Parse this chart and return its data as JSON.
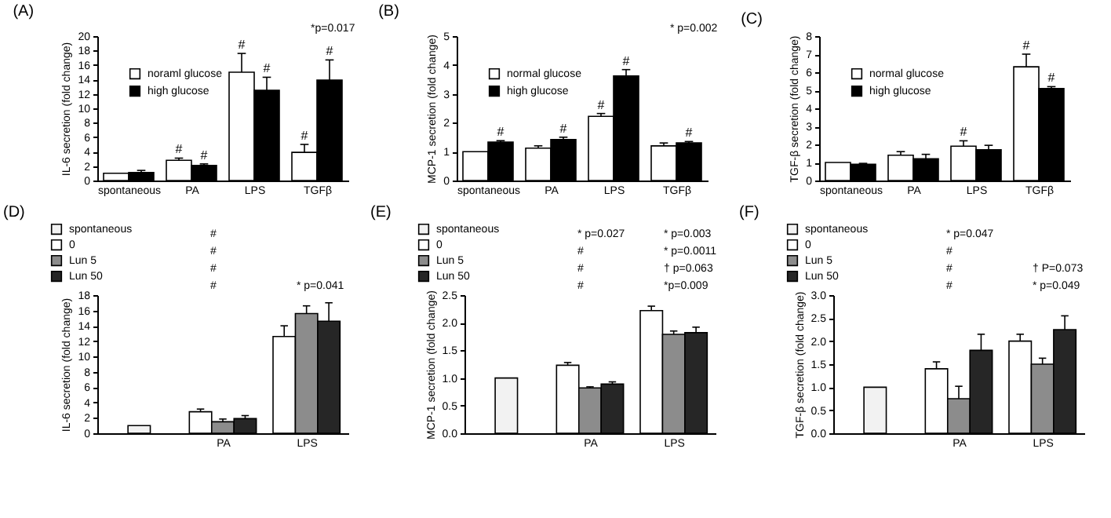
{
  "chart_data": [
    {
      "type": "bar",
      "title": "(A)",
      "ylabel": "IL-6 secretion (fold change)",
      "categories": [
        "spontaneous",
        "PA",
        "LPS",
        "TGFβ"
      ],
      "legend": "top left",
      "grid": false,
      "series": [
        {
          "name": "noraml glucose",
          "color": "#ffffff",
          "values": [
            1.0,
            2.8,
            15.0,
            3.9
          ],
          "errors": [
            null,
            0.3,
            2.6,
            1.1
          ],
          "value_labels": [
            null,
            "#",
            "#",
            "#"
          ]
        },
        {
          "name": "high glucose",
          "color": "#000000",
          "values": [
            1.1,
            2.1,
            12.5,
            13.9
          ],
          "errors": [
            0.3,
            0.2,
            1.8,
            2.8
          ],
          "value_labels": [
            null,
            "#",
            "#",
            "#"
          ]
        }
      ],
      "ylim": [
        0,
        20
      ],
      "yticks": [
        0,
        2,
        4,
        6,
        8,
        10,
        12,
        14,
        16,
        18,
        20
      ],
      "annotations": [
        "*p=0.017"
      ]
    },
    {
      "type": "bar",
      "title": "(B)",
      "ylabel": "MCP-1 secretion (fold change)",
      "categories": [
        "spontaneous",
        "PA",
        "LPS",
        "TGFβ"
      ],
      "legend": "top left",
      "grid": false,
      "series": [
        {
          "name": "normal glucose",
          "color": "#ffffff",
          "values": [
            1.0,
            1.12,
            2.22,
            1.2
          ],
          "errors": [
            null,
            0.08,
            0.1,
            0.1
          ],
          "value_labels": [
            null,
            null,
            "#",
            null
          ]
        },
        {
          "name": "high glucose",
          "color": "#000000",
          "values": [
            1.33,
            1.42,
            3.62,
            1.3
          ],
          "errors": [
            0.05,
            0.08,
            0.22,
            0.05
          ],
          "value_labels": [
            "#",
            "#",
            "#",
            "#"
          ]
        }
      ],
      "ylim": [
        0,
        5
      ],
      "yticks": [
        0,
        1,
        2,
        3,
        4,
        5
      ],
      "annotations": [
        "* p=0.002"
      ]
    },
    {
      "type": "bar",
      "title": "(C)",
      "ylabel": "TGF-β secretion (fold change)",
      "categories": [
        "spontaneous",
        "PA",
        "LPS",
        "TGFβ"
      ],
      "legend": "top left",
      "grid": false,
      "series": [
        {
          "name": "normal glucose",
          "color": "#ffffff",
          "values": [
            1.0,
            1.4,
            1.9,
            6.3
          ],
          "errors": [
            null,
            0.2,
            0.3,
            0.7
          ],
          "value_labels": [
            null,
            null,
            "#",
            "#"
          ]
        },
        {
          "name": "high glucose",
          "color": "#000000",
          "values": [
            0.9,
            1.2,
            1.7,
            5.1
          ],
          "errors": [
            0.05,
            0.25,
            0.25,
            0.1
          ],
          "value_labels": [
            null,
            null,
            null,
            "#"
          ]
        }
      ],
      "ylim": [
        0,
        8
      ],
      "yticks": [
        0,
        1,
        2,
        3,
        4,
        5,
        6,
        7,
        8
      ]
    },
    {
      "type": "bar",
      "title": "(D)",
      "ylabel": "IL-6 secretion (fold change)",
      "categories": [
        null,
        "PA",
        "LPS"
      ],
      "legend": "top",
      "grid": false,
      "series": [
        {
          "name": "spontaneous",
          "color": "#f2f2f2",
          "values": [
            1.0,
            null,
            null
          ]
        },
        {
          "name": "0",
          "color": "#ffffff",
          "values": [
            null,
            2.8,
            12.6
          ],
          "errors": [
            null,
            0.35,
            1.4
          ]
        },
        {
          "name": "Lun 5",
          "color": "#8c8c8c",
          "values": [
            null,
            1.5,
            15.6
          ],
          "errors": [
            null,
            0.35,
            1.0
          ]
        },
        {
          "name": "Lun 50",
          "color": "#262626",
          "values": [
            null,
            1.9,
            14.6
          ],
          "errors": [
            null,
            0.4,
            2.4
          ]
        }
      ],
      "ylim": [
        0,
        18
      ],
      "yticks": [
        0,
        2,
        4,
        6,
        8,
        10,
        12,
        14,
        16,
        18
      ],
      "annotations": [
        "#",
        "#",
        "#",
        "#",
        "* p=0.041"
      ]
    },
    {
      "type": "bar",
      "title": "(E)",
      "ylabel": "MCP-1 secretion (fold change)",
      "categories": [
        null,
        "PA",
        "LPS"
      ],
      "legend": "top",
      "grid": false,
      "series": [
        {
          "name": "spontaneous",
          "color": "#f2f2f2",
          "values": [
            1.0,
            null,
            null
          ]
        },
        {
          "name": "0",
          "color": "#ffffff",
          "values": [
            null,
            1.23,
            2.22
          ],
          "errors": [
            null,
            0.05,
            0.08
          ]
        },
        {
          "name": "Lun 5",
          "color": "#8c8c8c",
          "values": [
            null,
            0.82,
            1.79
          ],
          "errors": [
            null,
            0.02,
            0.06
          ]
        },
        {
          "name": "Lun 50",
          "color": "#262626",
          "values": [
            null,
            0.89,
            1.82
          ],
          "errors": [
            null,
            0.04,
            0.1
          ]
        }
      ],
      "ylim": [
        0,
        2.5
      ],
      "yticks": [
        {
          "value": 0,
          "label": "0.0"
        },
        {
          "value": 0.5,
          "label": "0.5"
        },
        {
          "value": 1,
          "label": "1.0"
        },
        {
          "value": 1.5,
          "label": "1.5"
        },
        {
          "value": 2,
          "label": "2.0"
        },
        {
          "value": 2.5,
          "label": "2.5"
        }
      ],
      "annotations": [
        "#",
        "#",
        "#",
        "* p=0.027",
        "*p=0.009",
        "† p=0.063",
        "* p=0.0011",
        "* p=0.003"
      ]
    },
    {
      "type": "bar",
      "title": "(F)",
      "ylabel": "TGF-β secretion (fold change)",
      "categories": [
        null,
        "PA",
        "LPS"
      ],
      "legend": "top",
      "grid": false,
      "series": [
        {
          "name": "spontaneous",
          "color": "#f2f2f2",
          "values": [
            1.0,
            null,
            null
          ]
        },
        {
          "name": "0",
          "color": "#ffffff",
          "values": [
            null,
            1.4,
            2.0
          ],
          "errors": [
            null,
            0.15,
            0.15
          ]
        },
        {
          "name": "Lun 5",
          "color": "#8c8c8c",
          "values": [
            null,
            0.75,
            1.5
          ],
          "errors": [
            null,
            0.27,
            0.13
          ]
        },
        {
          "name": "Lun 50",
          "color": "#262626",
          "values": [
            null,
            1.8,
            2.25
          ],
          "errors": [
            null,
            0.35,
            0.3
          ]
        }
      ],
      "ylim": [
        0,
        3
      ],
      "yticks": [
        {
          "value": 0,
          "label": "0.0"
        },
        {
          "value": 0.5,
          "label": "0.5"
        },
        {
          "value": 1,
          "label": "1.0"
        },
        {
          "value": 1.5,
          "label": "1.5"
        },
        {
          "value": 2,
          "label": "2.0"
        },
        {
          "value": 2.5,
          "label": "2.5"
        },
        {
          "value": 3,
          "label": "3.0"
        }
      ],
      "annotations": [
        "#",
        "#",
        "#",
        "* p=0.047",
        "* p=0.049",
        "† P=0.073"
      ]
    }
  ]
}
